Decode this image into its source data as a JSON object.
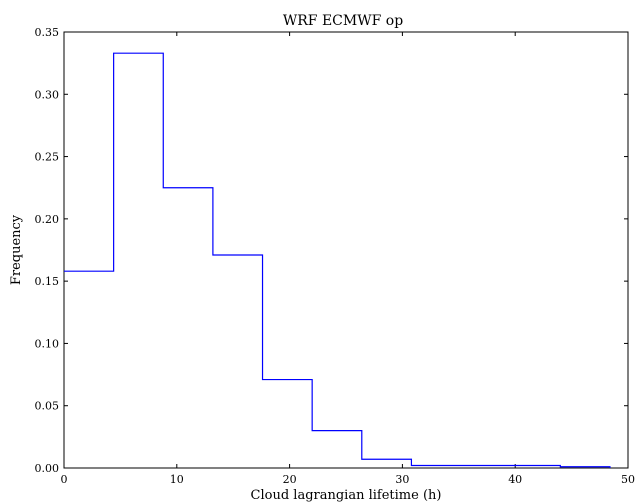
{
  "chart_data": {
    "type": "bar",
    "subtype": "histogram-step",
    "title": "WRF ECMWF op",
    "xlabel": "Cloud lagrangian lifetime (h)",
    "ylabel": "Frequency",
    "xlim": [
      0,
      50
    ],
    "ylim": [
      0,
      0.35
    ],
    "x_ticks": [
      0,
      10,
      20,
      30,
      40,
      50
    ],
    "x_tick_labels": [
      "0",
      "10",
      "20",
      "30",
      "40",
      "50"
    ],
    "y_ticks": [
      0,
      0.05,
      0.1,
      0.15,
      0.2,
      0.25,
      0.3,
      0.35
    ],
    "y_tick_labels": [
      "0.00",
      "0.05",
      "0.10",
      "0.15",
      "0.20",
      "0.25",
      "0.30",
      "0.35"
    ],
    "grid": false,
    "line_color": "#0000ff",
    "bin_edges": [
      0,
      4.4,
      8.8,
      13.2,
      17.6,
      22.0,
      26.4,
      30.8,
      35.2,
      39.6,
      44.0,
      48.4
    ],
    "values": [
      0.158,
      0.333,
      0.225,
      0.171,
      0.071,
      0.03,
      0.007,
      0.002,
      0.002,
      0.002,
      0.001
    ]
  }
}
